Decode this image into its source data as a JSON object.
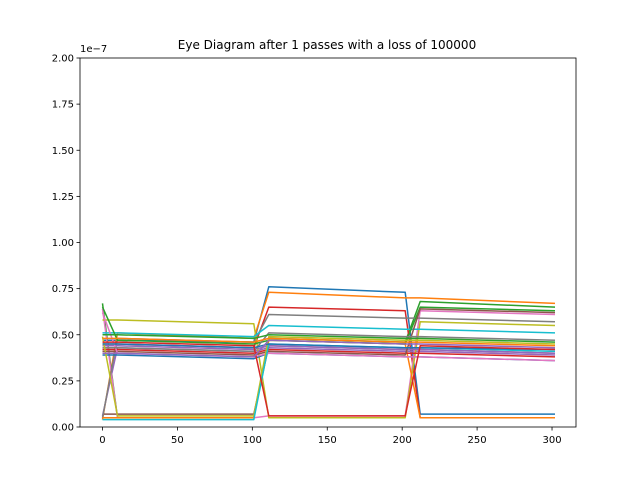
{
  "chart_data": {
    "type": "line",
    "title": "Eye Diagram after 1 passes with a loss of 100000",
    "xlabel": "",
    "ylabel": "",
    "y_offset_label": "1e−7",
    "xlim": [
      -15,
      316
    ],
    "ylim": [
      0,
      2.0
    ],
    "y_scale_factor": 1e-07,
    "x_ticks": [
      0,
      50,
      100,
      150,
      200,
      250,
      300
    ],
    "x_tick_labels": [
      "0",
      "50",
      "100",
      "150",
      "200",
      "250",
      "300"
    ],
    "y_ticks": [
      0,
      0.25,
      0.5,
      0.75,
      1.0,
      1.25,
      1.5,
      1.75,
      2.0
    ],
    "y_tick_labels": [
      "0.00",
      "0.25",
      "0.50",
      "0.75",
      "1.00",
      "1.25",
      "1.50",
      "1.75",
      "2.00"
    ],
    "grid": false,
    "legend": "none",
    "x": [
      0,
      10,
      101,
      111,
      202,
      212,
      302
    ],
    "series": [
      {
        "color": "#1f77b4",
        "values": [
          0.47,
          0.47,
          0.46,
          0.76,
          0.73,
          0.07,
          0.07
        ]
      },
      {
        "color": "#ff7f0e",
        "values": [
          0.04,
          0.51,
          0.48,
          0.73,
          0.7,
          0.7,
          0.67
        ]
      },
      {
        "color": "#2ca02c",
        "values": [
          0.67,
          0.05,
          0.05,
          0.48,
          0.46,
          0.68,
          0.65
        ]
      },
      {
        "color": "#d62728",
        "values": [
          0.45,
          0.45,
          0.43,
          0.65,
          0.63,
          0.05,
          0.05
        ]
      },
      {
        "color": "#9467bd",
        "values": [
          0.06,
          0.43,
          0.41,
          0.43,
          0.41,
          0.41,
          0.39
        ]
      },
      {
        "color": "#8c564b",
        "values": [
          0.07,
          0.07,
          0.07,
          0.44,
          0.42,
          0.42,
          0.4
        ]
      },
      {
        "color": "#e377c2",
        "values": [
          0.64,
          0.05,
          0.05,
          0.06,
          0.06,
          0.63,
          0.61
        ]
      },
      {
        "color": "#7f7f7f",
        "values": [
          0.05,
          0.48,
          0.46,
          0.61,
          0.59,
          0.59,
          0.57
        ]
      },
      {
        "color": "#bcbd22",
        "values": [
          0.58,
          0.58,
          0.56,
          0.05,
          0.05,
          0.57,
          0.55
        ]
      },
      {
        "color": "#17becf",
        "values": [
          0.51,
          0.51,
          0.49,
          0.55,
          0.53,
          0.53,
          0.51
        ]
      },
      {
        "color": "#1f77b4",
        "values": [
          0.39,
          0.39,
          0.37,
          0.4,
          0.38,
          0.38,
          0.36
        ]
      },
      {
        "color": "#ff7f0e",
        "values": [
          0.05,
          0.05,
          0.05,
          0.47,
          0.45,
          0.05,
          0.05
        ]
      },
      {
        "color": "#2ca02c",
        "values": [
          0.65,
          0.47,
          0.45,
          0.47,
          0.45,
          0.65,
          0.63
        ]
      },
      {
        "color": "#d62728",
        "values": [
          0.42,
          0.42,
          0.4,
          0.42,
          0.4,
          0.4,
          0.38
        ]
      },
      {
        "color": "#9467bd",
        "values": [
          0.44,
          0.44,
          0.42,
          0.44,
          0.42,
          0.42,
          0.4
        ]
      },
      {
        "color": "#8c564b",
        "values": [
          0.41,
          0.41,
          0.39,
          0.41,
          0.39,
          0.64,
          0.62
        ]
      },
      {
        "color": "#e377c2",
        "values": [
          0.62,
          0.4,
          0.38,
          0.4,
          0.38,
          0.38,
          0.36
        ]
      },
      {
        "color": "#7f7f7f",
        "values": [
          0.43,
          0.43,
          0.41,
          0.51,
          0.49,
          0.49,
          0.47
        ]
      },
      {
        "color": "#bcbd22",
        "values": [
          0.49,
          0.06,
          0.06,
          0.49,
          0.47,
          0.47,
          0.45
        ]
      },
      {
        "color": "#17becf",
        "values": [
          0.04,
          0.04,
          0.04,
          0.45,
          0.43,
          0.43,
          0.41
        ]
      },
      {
        "color": "#1f77b4",
        "values": [
          0.45,
          0.45,
          0.43,
          0.45,
          0.43,
          0.43,
          0.42
        ]
      },
      {
        "color": "#ff7f0e",
        "values": [
          0.48,
          0.48,
          0.46,
          0.48,
          0.46,
          0.46,
          0.44
        ]
      },
      {
        "color": "#2ca02c",
        "values": [
          0.5,
          0.5,
          0.48,
          0.5,
          0.48,
          0.48,
          0.46
        ]
      },
      {
        "color": "#d62728",
        "values": [
          0.46,
          0.46,
          0.44,
          0.06,
          0.06,
          0.44,
          0.42
        ]
      },
      {
        "color": "#9467bd",
        "values": [
          0.4,
          0.4,
          0.38,
          0.47,
          0.45,
          0.45,
          0.43
        ]
      }
    ]
  }
}
